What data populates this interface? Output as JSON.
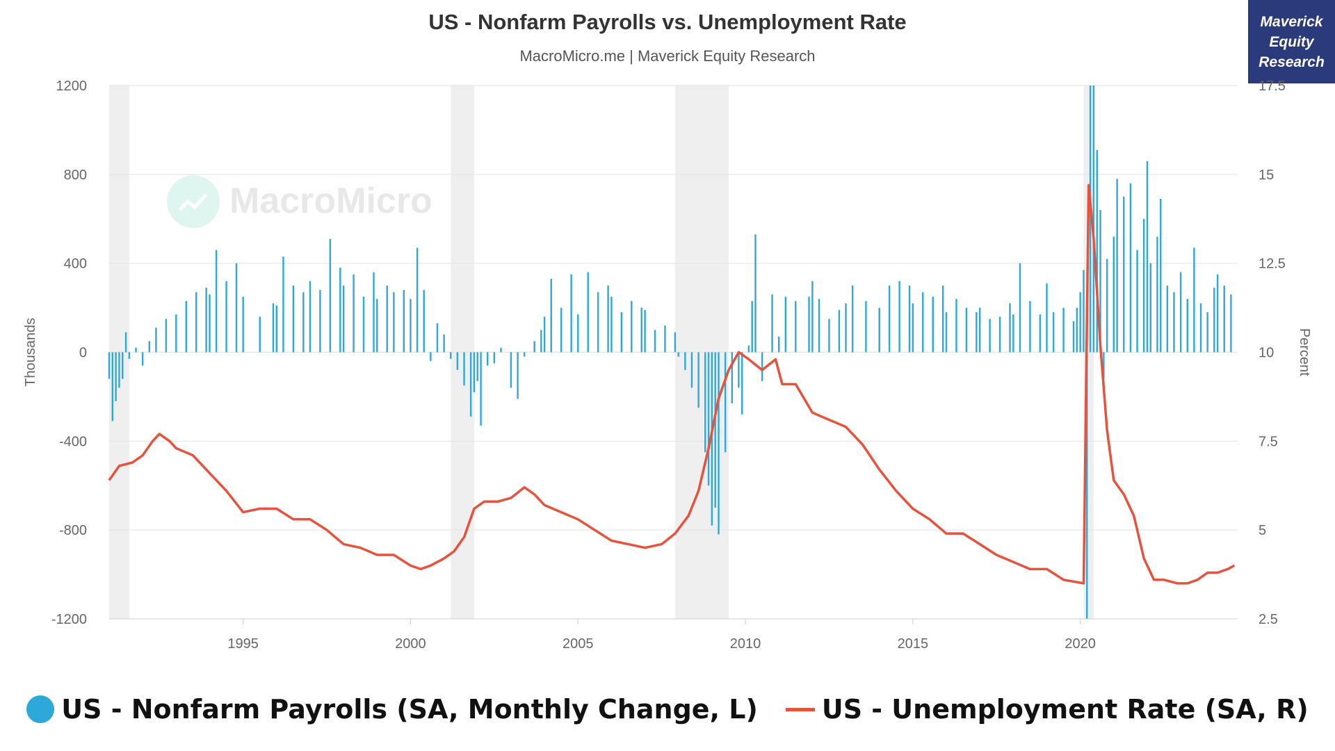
{
  "header": {
    "title": "US - Nonfarm Payrolls vs. Unemployment Rate",
    "subtitle": "MacroMicro.me | Maverick Equity Research",
    "badge_lines": [
      "Maverick",
      "Equity",
      "Research"
    ],
    "watermark": "MacroMicro"
  },
  "legend": {
    "payrolls": "US - Nonfarm Payrolls (SA, Monthly Change, L)",
    "unemployment": "US - Unemployment Rate (SA, R)"
  },
  "chart_data": {
    "type": "bar",
    "x_axis": {
      "min": 1991.0,
      "max": 2024.7,
      "ticks": [
        1995,
        2000,
        2005,
        2010,
        2015,
        2020
      ]
    },
    "left_axis": {
      "label": "Thousands",
      "min": -1200,
      "max": 1200,
      "ticks": [
        -1200,
        -800,
        -400,
        0,
        400,
        800,
        1200
      ]
    },
    "right_axis": {
      "label": "Percent",
      "min": 2.5,
      "max": 17.5,
      "ticks": [
        2.5,
        5,
        7.5,
        10,
        12.5,
        15,
        17.5
      ],
      "tick_labels": [
        "2.5",
        "5",
        "7.5",
        "10",
        "12.5",
        "15",
        "17.5"
      ]
    },
    "recessions": [
      [
        1991.0,
        1991.6
      ],
      [
        2001.2,
        2001.9
      ],
      [
        2007.9,
        2009.5
      ],
      [
        2020.1,
        2020.4
      ]
    ],
    "series": [
      {
        "name": "US - Nonfarm Payrolls (SA, Monthly Change, L)",
        "type": "bar",
        "color": "#2ea8d8",
        "points": [
          [
            1991.0,
            -120
          ],
          [
            1991.1,
            -310
          ],
          [
            1991.2,
            -220
          ],
          [
            1991.3,
            -160
          ],
          [
            1991.4,
            -120
          ],
          [
            1991.5,
            90
          ],
          [
            1991.6,
            -30
          ],
          [
            1991.8,
            20
          ],
          [
            1992.0,
            -60
          ],
          [
            1992.2,
            50
          ],
          [
            1992.4,
            110
          ],
          [
            1992.7,
            150
          ],
          [
            1993.0,
            170
          ],
          [
            1993.3,
            230
          ],
          [
            1993.6,
            270
          ],
          [
            1993.9,
            290
          ],
          [
            1994.0,
            260
          ],
          [
            1994.2,
            460
          ],
          [
            1994.5,
            320
          ],
          [
            1994.8,
            400
          ],
          [
            1995.0,
            250
          ],
          [
            1995.5,
            160
          ],
          [
            1995.9,
            220
          ],
          [
            1996.0,
            210
          ],
          [
            1996.2,
            430
          ],
          [
            1996.5,
            300
          ],
          [
            1996.8,
            270
          ],
          [
            1997.0,
            320
          ],
          [
            1997.3,
            280
          ],
          [
            1997.6,
            510
          ],
          [
            1997.9,
            380
          ],
          [
            1998.0,
            300
          ],
          [
            1998.3,
            350
          ],
          [
            1998.6,
            250
          ],
          [
            1998.9,
            360
          ],
          [
            1999.0,
            240
          ],
          [
            1999.3,
            300
          ],
          [
            1999.5,
            270
          ],
          [
            1999.8,
            280
          ],
          [
            2000.0,
            240
          ],
          [
            2000.2,
            470
          ],
          [
            2000.4,
            280
          ],
          [
            2000.6,
            -40
          ],
          [
            2000.8,
            130
          ],
          [
            2001.0,
            80
          ],
          [
            2001.2,
            -30
          ],
          [
            2001.4,
            -80
          ],
          [
            2001.6,
            -150
          ],
          [
            2001.8,
            -290
          ],
          [
            2001.9,
            -180
          ],
          [
            2002.0,
            -130
          ],
          [
            2002.1,
            -330
          ],
          [
            2002.3,
            -60
          ],
          [
            2002.5,
            -50
          ],
          [
            2002.7,
            20
          ],
          [
            2003.0,
            -160
          ],
          [
            2003.2,
            -210
          ],
          [
            2003.4,
            -20
          ],
          [
            2003.7,
            50
          ],
          [
            2003.9,
            100
          ],
          [
            2004.0,
            160
          ],
          [
            2004.2,
            330
          ],
          [
            2004.5,
            200
          ],
          [
            2004.8,
            350
          ],
          [
            2005.0,
            170
          ],
          [
            2005.3,
            360
          ],
          [
            2005.6,
            270
          ],
          [
            2005.9,
            300
          ],
          [
            2006.0,
            250
          ],
          [
            2006.3,
            180
          ],
          [
            2006.6,
            230
          ],
          [
            2006.9,
            200
          ],
          [
            2007.0,
            190
          ],
          [
            2007.3,
            100
          ],
          [
            2007.6,
            120
          ],
          [
            2007.9,
            90
          ],
          [
            2008.0,
            -20
          ],
          [
            2008.2,
            -80
          ],
          [
            2008.4,
            -160
          ],
          [
            2008.6,
            -250
          ],
          [
            2008.8,
            -450
          ],
          [
            2008.9,
            -600
          ],
          [
            2009.0,
            -780
          ],
          [
            2009.1,
            -700
          ],
          [
            2009.2,
            -820
          ],
          [
            2009.4,
            -450
          ],
          [
            2009.6,
            -230
          ],
          [
            2009.8,
            -160
          ],
          [
            2009.9,
            -280
          ],
          [
            2010.1,
            30
          ],
          [
            2010.2,
            230
          ],
          [
            2010.3,
            530
          ],
          [
            2010.5,
            -130
          ],
          [
            2010.8,
            260
          ],
          [
            2011.0,
            70
          ],
          [
            2011.2,
            250
          ],
          [
            2011.5,
            230
          ],
          [
            2011.9,
            250
          ],
          [
            2012.0,
            320
          ],
          [
            2012.2,
            240
          ],
          [
            2012.5,
            150
          ],
          [
            2012.8,
            190
          ],
          [
            2013.0,
            220
          ],
          [
            2013.2,
            300
          ],
          [
            2013.6,
            230
          ],
          [
            2014.0,
            200
          ],
          [
            2014.3,
            300
          ],
          [
            2014.6,
            320
          ],
          [
            2014.9,
            300
          ],
          [
            2015.0,
            220
          ],
          [
            2015.3,
            270
          ],
          [
            2015.6,
            250
          ],
          [
            2015.9,
            300
          ],
          [
            2016.0,
            180
          ],
          [
            2016.3,
            240
          ],
          [
            2016.6,
            200
          ],
          [
            2016.9,
            180
          ],
          [
            2017.0,
            200
          ],
          [
            2017.3,
            150
          ],
          [
            2017.6,
            160
          ],
          [
            2017.9,
            220
          ],
          [
            2018.0,
            170
          ],
          [
            2018.2,
            400
          ],
          [
            2018.5,
            230
          ],
          [
            2018.8,
            170
          ],
          [
            2019.0,
            310
          ],
          [
            2019.2,
            180
          ],
          [
            2019.5,
            200
          ],
          [
            2019.8,
            140
          ],
          [
            2019.9,
            200
          ],
          [
            2020.0,
            270
          ],
          [
            2020.1,
            370
          ],
          [
            2020.2,
            -1200
          ],
          [
            2020.3,
            1200
          ],
          [
            2020.4,
            1200
          ],
          [
            2020.5,
            910
          ],
          [
            2020.6,
            640
          ],
          [
            2020.7,
            -120
          ],
          [
            2020.8,
            420
          ],
          [
            2021.0,
            520
          ],
          [
            2021.1,
            780
          ],
          [
            2021.3,
            700
          ],
          [
            2021.5,
            760
          ],
          [
            2021.7,
            460
          ],
          [
            2021.9,
            600
          ],
          [
            2022.0,
            860
          ],
          [
            2022.1,
            400
          ],
          [
            2022.3,
            520
          ],
          [
            2022.4,
            690
          ],
          [
            2022.6,
            300
          ],
          [
            2022.8,
            270
          ],
          [
            2023.0,
            360
          ],
          [
            2023.2,
            240
          ],
          [
            2023.4,
            470
          ],
          [
            2023.6,
            220
          ],
          [
            2023.8,
            180
          ],
          [
            2024.0,
            290
          ],
          [
            2024.1,
            350
          ],
          [
            2024.3,
            300
          ],
          [
            2024.5,
            260
          ]
        ]
      },
      {
        "name": "US - Unemployment Rate (SA, R)",
        "type": "line",
        "axis": "right",
        "color": "#e6523c",
        "points": [
          [
            1991.0,
            6.4
          ],
          [
            1991.3,
            6.8
          ],
          [
            1991.7,
            6.9
          ],
          [
            1992.0,
            7.1
          ],
          [
            1992.3,
            7.5
          ],
          [
            1992.5,
            7.7
          ],
          [
            1992.8,
            7.5
          ],
          [
            1993.0,
            7.3
          ],
          [
            1993.5,
            7.1
          ],
          [
            1994.0,
            6.6
          ],
          [
            1994.5,
            6.1
          ],
          [
            1995.0,
            5.5
          ],
          [
            1995.5,
            5.6
          ],
          [
            1996.0,
            5.6
          ],
          [
            1996.5,
            5.3
          ],
          [
            1997.0,
            5.3
          ],
          [
            1997.5,
            5.0
          ],
          [
            1998.0,
            4.6
          ],
          [
            1998.5,
            4.5
          ],
          [
            1999.0,
            4.3
          ],
          [
            1999.5,
            4.3
          ],
          [
            2000.0,
            4.0
          ],
          [
            2000.3,
            3.9
          ],
          [
            2000.6,
            4.0
          ],
          [
            2001.0,
            4.2
          ],
          [
            2001.3,
            4.4
          ],
          [
            2001.6,
            4.8
          ],
          [
            2001.9,
            5.6
          ],
          [
            2002.2,
            5.8
          ],
          [
            2002.6,
            5.8
          ],
          [
            2003.0,
            5.9
          ],
          [
            2003.4,
            6.2
          ],
          [
            2003.7,
            6.0
          ],
          [
            2004.0,
            5.7
          ],
          [
            2004.5,
            5.5
          ],
          [
            2005.0,
            5.3
          ],
          [
            2005.5,
            5.0
          ],
          [
            2006.0,
            4.7
          ],
          [
            2006.5,
            4.6
          ],
          [
            2007.0,
            4.5
          ],
          [
            2007.5,
            4.6
          ],
          [
            2007.9,
            4.9
          ],
          [
            2008.3,
            5.4
          ],
          [
            2008.6,
            6.1
          ],
          [
            2008.9,
            7.3
          ],
          [
            2009.2,
            8.7
          ],
          [
            2009.5,
            9.5
          ],
          [
            2009.8,
            10.0
          ],
          [
            2010.1,
            9.8
          ],
          [
            2010.5,
            9.5
          ],
          [
            2010.9,
            9.8
          ],
          [
            2011.1,
            9.1
          ],
          [
            2011.5,
            9.1
          ],
          [
            2012.0,
            8.3
          ],
          [
            2012.5,
            8.1
          ],
          [
            2013.0,
            7.9
          ],
          [
            2013.5,
            7.4
          ],
          [
            2014.0,
            6.7
          ],
          [
            2014.5,
            6.1
          ],
          [
            2015.0,
            5.6
          ],
          [
            2015.5,
            5.3
          ],
          [
            2016.0,
            4.9
          ],
          [
            2016.5,
            4.9
          ],
          [
            2017.0,
            4.6
          ],
          [
            2017.5,
            4.3
          ],
          [
            2018.0,
            4.1
          ],
          [
            2018.5,
            3.9
          ],
          [
            2019.0,
            3.9
          ],
          [
            2019.5,
            3.6
          ],
          [
            2020.1,
            3.5
          ],
          [
            2020.25,
            14.7
          ],
          [
            2020.4,
            13.2
          ],
          [
            2020.6,
            10.2
          ],
          [
            2020.8,
            7.8
          ],
          [
            2021.0,
            6.4
          ],
          [
            2021.3,
            6.0
          ],
          [
            2021.6,
            5.4
          ],
          [
            2021.9,
            4.2
          ],
          [
            2022.2,
            3.6
          ],
          [
            2022.5,
            3.6
          ],
          [
            2022.9,
            3.5
          ],
          [
            2023.2,
            3.5
          ],
          [
            2023.5,
            3.6
          ],
          [
            2023.8,
            3.8
          ],
          [
            2024.1,
            3.8
          ],
          [
            2024.4,
            3.9
          ],
          [
            2024.6,
            4.0
          ]
        ]
      }
    ]
  }
}
